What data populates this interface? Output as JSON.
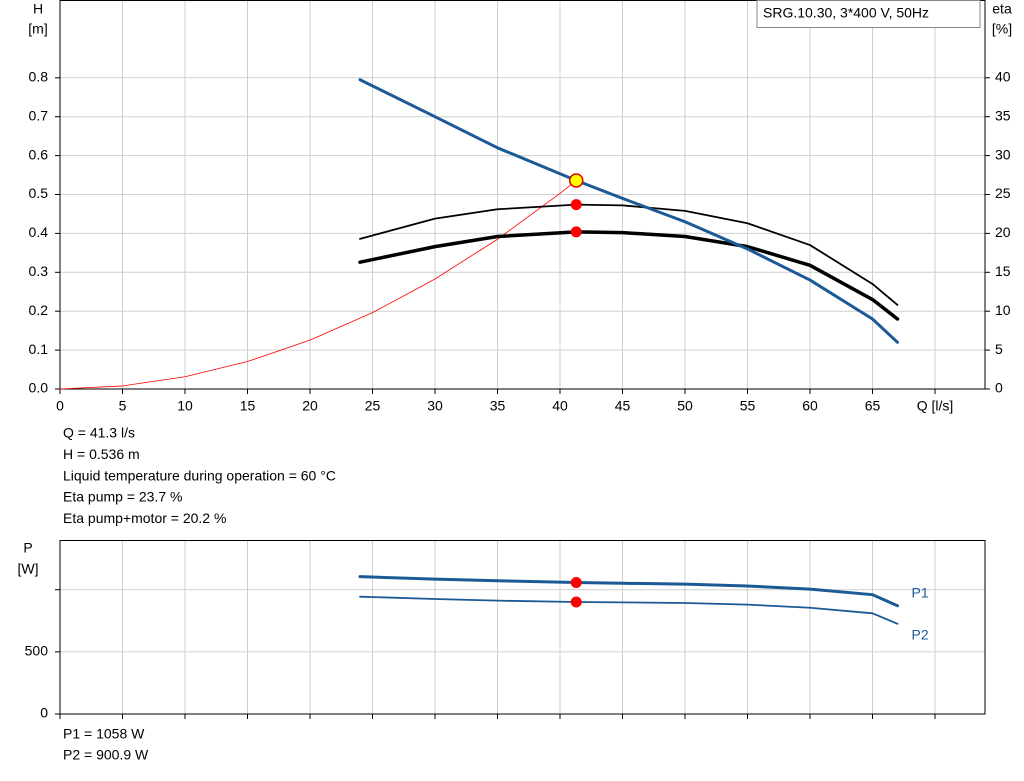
{
  "chart_data": [
    {
      "type": "line",
      "title": "SRG.10.30, 3*400 V, 50Hz",
      "ylabel": "H",
      "yunit": "[m]",
      "y2label": "eta",
      "y2unit": "[%]",
      "xlim": [
        0,
        74
      ],
      "xticks": [
        0,
        5,
        10,
        15,
        20,
        25,
        30,
        35,
        40,
        45,
        50,
        55,
        60,
        65,
        {
          "value": 70,
          "label": "Q [l/s]"
        }
      ],
      "ylim": [
        0,
        1.0
      ],
      "yticks": [
        {
          "value": 0,
          "label": "0.0"
        },
        0.1,
        0.2,
        0.3,
        0.4,
        0.5,
        0.6,
        0.7,
        0.8
      ],
      "y2lim": [
        0,
        50
      ],
      "y2ticks": [
        0,
        5,
        10,
        15,
        20,
        25,
        30,
        35,
        40
      ],
      "grid": true,
      "series": [
        {
          "color": "#ff0000",
          "width": 0.8,
          "axis": "y",
          "x": [
            0,
            5,
            10,
            15,
            20,
            25,
            30,
            35,
            40,
            41.3
          ],
          "values": [
            0,
            0.0079,
            0.0314,
            0.0707,
            0.1257,
            0.1964,
            0.2828,
            0.385,
            0.5028,
            0.536
          ]
        },
        {
          "color": "#000000",
          "width": 1.8,
          "axis": "y2",
          "x": [
            24,
            30,
            35,
            41.3,
            45,
            50,
            55,
            60,
            65,
            67
          ],
          "values": [
            19.3,
            21.9,
            23.1,
            23.7,
            23.6,
            22.9,
            21.3,
            18.5,
            13.5,
            10.8
          ]
        },
        {
          "color": "#000000",
          "width": 3.5,
          "axis": "y2",
          "x": [
            24,
            30,
            35,
            41.3,
            45,
            50,
            55,
            60,
            65,
            67
          ],
          "values": [
            16.3,
            18.3,
            19.6,
            20.2,
            20.1,
            19.6,
            18.3,
            15.9,
            11.5,
            9.0
          ]
        },
        {
          "color": "#1c5a96",
          "width": 3,
          "axis": "y",
          "x": [
            24,
            30,
            35,
            41.3,
            45,
            50,
            55,
            60,
            65,
            67
          ],
          "values": [
            0.795,
            0.7,
            0.62,
            0.536,
            0.49,
            0.43,
            0.36,
            0.28,
            0.18,
            0.12
          ]
        }
      ],
      "points": [
        {
          "x": 41.3,
          "y": 0.536,
          "axis": "y",
          "color": "#ffff00"
        },
        {
          "x": 41.3,
          "y": 23.7,
          "axis": "y2",
          "color": "#ff0000"
        },
        {
          "x": 41.3,
          "y": 20.2,
          "axis": "y2",
          "color": "#ff0000"
        }
      ]
    },
    {
      "type": "line",
      "ylabel": "P",
      "yunit": "[W]",
      "xlim": [
        0,
        74
      ],
      "xticks": [
        0,
        5,
        10,
        15,
        20,
        25,
        30,
        35,
        40,
        45,
        50,
        55,
        60,
        65,
        70
      ],
      "xtick_labels": false,
      "ylim": [
        0,
        1400
      ],
      "yticks": [
        0,
        500,
        {
          "value": 1000,
          "label": null
        }
      ],
      "grid": true,
      "series": [
        {
          "name": "P1",
          "color": "#1c5a96",
          "width": 3,
          "axis": "y",
          "x": [
            24,
            30,
            35,
            41.3,
            45,
            50,
            55,
            60,
            65,
            67
          ],
          "values": [
            1105,
            1085,
            1072,
            1058,
            1052,
            1045,
            1030,
            1005,
            960,
            871
          ]
        },
        {
          "name": "P2",
          "color": "#1c5a96",
          "width": 1.8,
          "axis": "y",
          "x": [
            24,
            30,
            35,
            41.3,
            45,
            50,
            55,
            60,
            65,
            67
          ],
          "values": [
            944,
            925,
            912,
            900.9,
            898,
            893,
            880,
            855,
            810,
            726
          ]
        }
      ],
      "points": [
        {
          "x": 41.3,
          "y": 1058,
          "axis": "y",
          "color": "#ff0000"
        },
        {
          "x": 41.3,
          "y": 900.9,
          "axis": "y",
          "color": "#ff0000"
        }
      ]
    }
  ],
  "info_top": [
    "Q = 41.3 l/s",
    "H = 0.536 m",
    "Liquid temperature during operation = 60 °C",
    "Eta pump = 23.7 %",
    "Eta pump+motor = 20.2 %"
  ],
  "info_bottom": [
    "P1 = 1058 W",
    "P2 = 900.9 W"
  ]
}
